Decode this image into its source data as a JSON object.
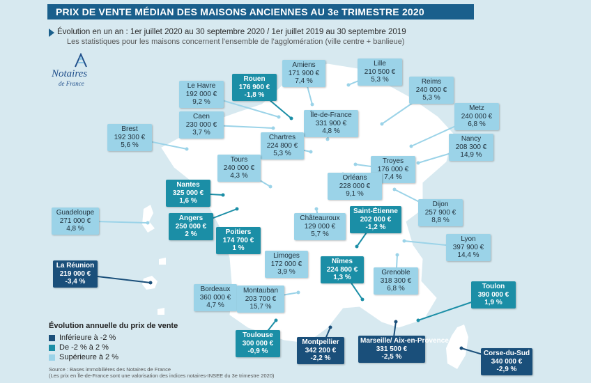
{
  "title": "PRIX DE VENTE MÉDIAN DES MAISONS ANCIENNES AU 3e TRIMESTRE 2020",
  "subtitle": "Évolution en un an : 1er juillet 2020 au 30 septembre 2020 / 1er juillet 2019 au 30 septembre 2019",
  "note": "Les statistiques pour les maisons concernent l'ensemble de l'agglomération (ville centre + banlieue)",
  "logo": {
    "line1": "Notaires",
    "line2": "de France"
  },
  "colors": {
    "inf": "#1a4f7a",
    "mid": "#1b8ea6",
    "sup": "#9bd3e8",
    "land": "#ffffff",
    "sea": "#d7e9f0"
  },
  "legend": {
    "title": "Évolution annuelle du prix de vente",
    "items": [
      {
        "label": "Inférieure à -2 %",
        "cls": "inf"
      },
      {
        "label": "De -2 % à 2 %",
        "cls": "mid"
      },
      {
        "label": "Supérieure à 2 %",
        "cls": "sup"
      }
    ]
  },
  "source": "Source : Bases immobilières des Notaires de France",
  "source2": "(Les prix en Île-de-France sont une valorisation des indices notaires-INSEE du 3e trimestre 2020)",
  "cities": [
    {
      "name": "Amiens",
      "price": "171 900 €",
      "change": "7,4 %",
      "cls": "sup"
    },
    {
      "name": "Lille",
      "price": "210 500 €",
      "change": "5,3 %",
      "cls": "sup"
    },
    {
      "name": "Rouen",
      "price": "176 900 €",
      "change": "-1,8 %",
      "cls": "mid"
    },
    {
      "name": "Le Havre",
      "price": "192 000 €",
      "change": "9,2 %",
      "cls": "sup"
    },
    {
      "name": "Reims",
      "price": "240 000 €",
      "change": "5,3 %",
      "cls": "sup"
    },
    {
      "name": "Île-de-France",
      "price": "331 900 €",
      "change": "4,8 %",
      "cls": "sup"
    },
    {
      "name": "Caen",
      "price": "230 000 €",
      "change": "3,7 %",
      "cls": "sup"
    },
    {
      "name": "Metz",
      "price": "240 000 €",
      "change": "6,8 %",
      "cls": "sup"
    },
    {
      "name": "Brest",
      "price": "192 300 €",
      "change": "5,6 %",
      "cls": "sup"
    },
    {
      "name": "Chartres",
      "price": "224 800 €",
      "change": "5,3 %",
      "cls": "sup"
    },
    {
      "name": "Nancy",
      "price": "208 300 €",
      "change": "14,9 %",
      "cls": "sup"
    },
    {
      "name": "Tours",
      "price": "240 000 €",
      "change": "4,3 %",
      "cls": "sup"
    },
    {
      "name": "Troyes",
      "price": "176 000 €",
      "change": "7,4 %",
      "cls": "sup"
    },
    {
      "name": "Orléans",
      "price": "228 000 €",
      "change": "9,1 %",
      "cls": "sup"
    },
    {
      "name": "Nantes",
      "price": "325 000 €",
      "change": "1,6 %",
      "cls": "mid"
    },
    {
      "name": "Dijon",
      "price": "257 900 €",
      "change": "8,8 %",
      "cls": "sup"
    },
    {
      "name": "Guadeloupe",
      "price": "271 000 €",
      "change": "4,8 %",
      "cls": "sup"
    },
    {
      "name": "Angers",
      "price": "250 000 €",
      "change": "2 %",
      "cls": "mid"
    },
    {
      "name": "Châteauroux",
      "price": "129 000 €",
      "change": "5,7 %",
      "cls": "sup"
    },
    {
      "name": "Saint-Étienne",
      "price": "202 000 €",
      "change": "-1,2 %",
      "cls": "mid"
    },
    {
      "name": "Poitiers",
      "price": "174 700 €",
      "change": "1 %",
      "cls": "mid"
    },
    {
      "name": "Lyon",
      "price": "397 900 €",
      "change": "14,4 %",
      "cls": "sup"
    },
    {
      "name": "Limoges",
      "price": "172 000 €",
      "change": "3,9 %",
      "cls": "sup"
    },
    {
      "name": "Nîmes",
      "price": "224 800 €",
      "change": "1,3 %",
      "cls": "mid"
    },
    {
      "name": "La Réunion",
      "price": "219 000 €",
      "change": "-3,4 %",
      "cls": "inf"
    },
    {
      "name": "Grenoble",
      "price": "318 300 €",
      "change": "6,8 %",
      "cls": "sup"
    },
    {
      "name": "Bordeaux",
      "price": "360 000 €",
      "change": "4,7 %",
      "cls": "sup"
    },
    {
      "name": "Montauban",
      "price": "203 700 €",
      "change": "15,7 %",
      "cls": "sup"
    },
    {
      "name": "Toulon",
      "price": "390 000 €",
      "change": "1,9 %",
      "cls": "mid"
    },
    {
      "name": "Toulouse",
      "price": "300 000 €",
      "change": "-0,9 %",
      "cls": "mid"
    },
    {
      "name": "Montpellier",
      "price": "342 200 €",
      "change": "-2,2 %",
      "cls": "inf"
    },
    {
      "name": "Marseille/\nAix-en-Provence",
      "price": "331 500 €",
      "change": "-2,5 %",
      "cls": "inf"
    },
    {
      "name": "Corse-du-Sud",
      "price": "340 000 €",
      "change": "-2,9 %",
      "cls": "inf"
    }
  ]
}
